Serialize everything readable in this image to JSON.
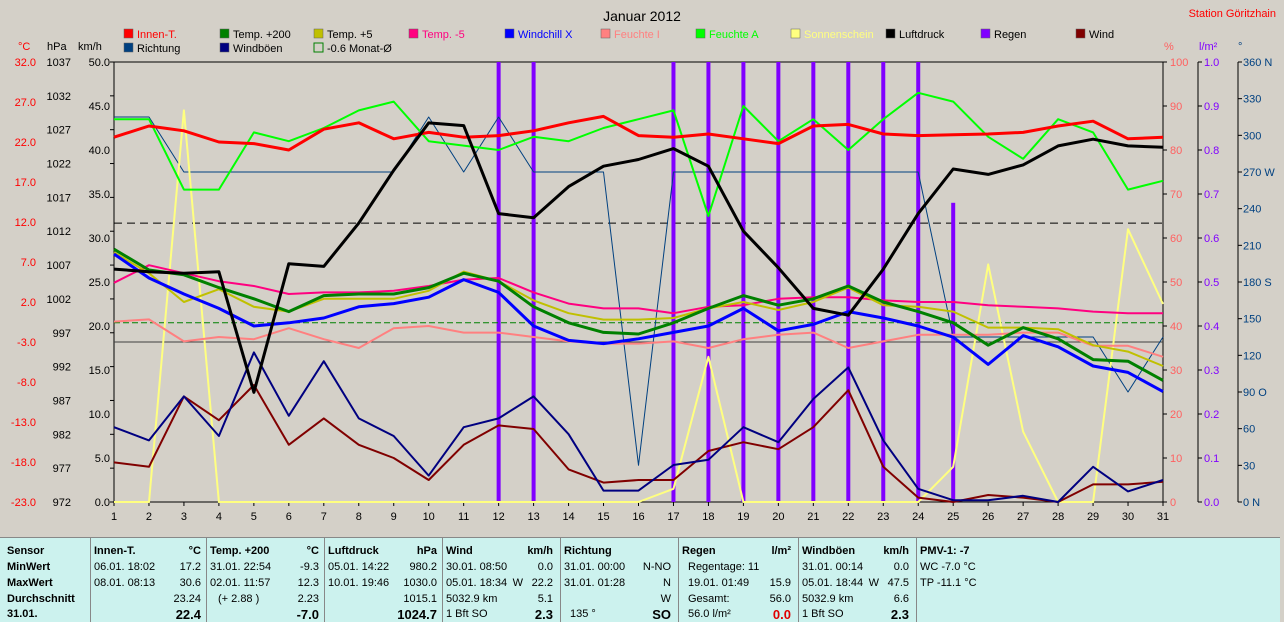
{
  "title": "Januar 2012",
  "station": "Station Göritzhain",
  "axes": {
    "c_label": "°C",
    "hpa_label": "hPa",
    "kmh_label": "km/h",
    "pct_label": "%",
    "rain_label": "l/m²",
    "deg_label": "°",
    "c_ticks": [
      "32.0",
      "27.0",
      "22.0",
      "17.0",
      "12.0",
      "7.0",
      "2.0",
      "-3.0",
      "-8.0",
      "-13.0",
      "-18.0",
      "-23.0"
    ],
    "hpa_ticks": [
      "1037",
      "1032",
      "1027",
      "1022",
      "1017",
      "1012",
      "1007",
      "1002",
      "997",
      "992",
      "987",
      "982",
      "977",
      "972"
    ],
    "kmh_ticks": [
      "50.0",
      "45.0",
      "40.0",
      "35.0",
      "30.0",
      "25.0",
      "20.0",
      "15.0",
      "10.0",
      "5.0",
      "0.0"
    ],
    "pct_ticks": [
      "100",
      "90",
      "80",
      "70",
      "60",
      "50",
      "40",
      "30",
      "20",
      "10",
      "0"
    ],
    "rain_ticks": [
      "1.0",
      "0.9",
      "0.8",
      "0.7",
      "0.6",
      "0.5",
      "0.4",
      "0.3",
      "0.2",
      "0.1",
      "0.0"
    ],
    "deg_ticks": [
      "360 N",
      "330",
      "300",
      "270 W",
      "240",
      "210",
      "180 S",
      "150",
      "120",
      "90 O",
      "60",
      "30",
      "0 N"
    ],
    "x_ticks": [
      "1",
      "2",
      "3",
      "4",
      "5",
      "6",
      "7",
      "8",
      "9",
      "10",
      "11",
      "12",
      "13",
      "14",
      "15",
      "16",
      "17",
      "18",
      "19",
      "20",
      "21",
      "22",
      "23",
      "24",
      "25",
      "26",
      "27",
      "28",
      "29",
      "30",
      "31"
    ]
  },
  "legend": [
    {
      "label": "Innen-T.",
      "color": "#ff0000"
    },
    {
      "label": "Temp. +200",
      "color": "#008000"
    },
    {
      "label": "Temp. +5",
      "color": "#c0c000"
    },
    {
      "label": "Temp. -5",
      "color": "#ff0080"
    },
    {
      "label": "Windchill X",
      "color": "#0000ff"
    },
    {
      "label": "Feuchte I",
      "color": "#ff8080"
    },
    {
      "label": "Feuchte A",
      "color": "#00ff00"
    },
    {
      "label": "Sonnenschein",
      "color": "#ffff80"
    },
    {
      "label": "Luftdruck",
      "color": "#000000"
    },
    {
      "label": "Regen",
      "color": "#8000ff"
    },
    {
      "label": "Wind",
      "color": "#800000"
    },
    {
      "label": "Richtung",
      "color": "#004080"
    },
    {
      "label": "Windböen",
      "color": "#000080"
    },
    {
      "label": "-0.6 Monat-Ø",
      "color": "#008000"
    }
  ],
  "chart_data": {
    "type": "line",
    "title": "Januar 2012",
    "x": [
      1,
      2,
      3,
      4,
      5,
      6,
      7,
      8,
      9,
      10,
      11,
      12,
      13,
      14,
      15,
      16,
      17,
      18,
      19,
      20,
      21,
      22,
      23,
      24,
      25,
      26,
      27,
      28,
      29,
      30,
      31
    ],
    "y_primary_axis": "°C",
    "ylim_c": [
      -23,
      32
    ],
    "ylim_hpa": [
      972,
      1037
    ],
    "ylim_kmh": [
      0,
      50
    ],
    "ylim_pct": [
      0,
      100
    ],
    "ylim_rain": [
      0,
      1
    ],
    "ylim_deg": [
      0,
      360
    ],
    "grid": false,
    "legend_position": "top",
    "series": [
      {
        "name": "Innen-T.",
        "unit": "°C",
        "color": "#ff0000",
        "values": [
          22.6,
          24.0,
          23.4,
          22.0,
          21.8,
          21.0,
          23.6,
          24.4,
          22.4,
          23.2,
          22.6,
          22.8,
          23.4,
          24.4,
          25.2,
          22.8,
          22.6,
          23.0,
          22.4,
          21.8,
          24.0,
          24.2,
          23.0,
          22.8,
          22.9,
          23.0,
          23.2,
          24.0,
          24.6,
          22.4,
          22.6
        ]
      },
      {
        "name": "Temp. +200",
        "unit": "°C",
        "color": "#008000",
        "values": [
          8.6,
          6.0,
          5.4,
          3.8,
          2.4,
          0.8,
          2.8,
          3.0,
          3.0,
          3.8,
          5.6,
          4.6,
          1.4,
          -0.6,
          -1.8,
          -2.0,
          -0.6,
          1.2,
          2.8,
          1.6,
          2.4,
          4.0,
          2.0,
          0.8,
          -0.6,
          -3.4,
          -1.2,
          -2.6,
          -5.2,
          -5.4,
          -7.8
        ]
      },
      {
        "name": "Temp. +5",
        "unit": "°C",
        "color": "#c0c000",
        "values": [
          8.2,
          5.6,
          2.0,
          3.6,
          1.4,
          0.8,
          2.4,
          2.4,
          2.4,
          3.4,
          5.8,
          4.6,
          2.2,
          0.6,
          -0.2,
          -0.2,
          0.0,
          1.2,
          2.0,
          1.0,
          2.0,
          3.8,
          1.6,
          1.4,
          0.8,
          -1.2,
          -1.2,
          -1.4,
          -3.4,
          -4.2,
          -6.0
        ]
      },
      {
        "name": "Temp. -5",
        "unit": "°C",
        "color": "#ff0080",
        "values": [
          4.4,
          6.6,
          5.6,
          4.6,
          4.0,
          3.0,
          3.2,
          3.2,
          3.4,
          4.0,
          4.8,
          5.0,
          3.2,
          1.8,
          1.2,
          1.2,
          0.6,
          1.4,
          1.6,
          2.4,
          2.6,
          2.6,
          2.2,
          2.0,
          2.0,
          1.6,
          1.4,
          1.2,
          0.8,
          0.6,
          0.6
        ]
      },
      {
        "name": "Windchill X",
        "unit": "°C",
        "color": "#0000ff",
        "values": [
          8.0,
          5.0,
          3.0,
          1.2,
          -1.0,
          -0.6,
          0.0,
          1.4,
          1.8,
          2.6,
          4.8,
          3.2,
          -1.0,
          -2.8,
          -3.2,
          -2.6,
          -1.8,
          -1.0,
          1.2,
          -1.6,
          -0.8,
          0.8,
          0.0,
          -1.0,
          -2.4,
          -5.8,
          -2.2,
          -3.6,
          -6.0,
          -6.8,
          -9.2
        ]
      },
      {
        "name": "Feuchte I",
        "unit": "%",
        "color": "#ff8080",
        "values": [
          41,
          41.5,
          36.5,
          37.5,
          37,
          39.5,
          37,
          35,
          39.5,
          40,
          38.5,
          38.5,
          37.5,
          36.5,
          36,
          36,
          36.5,
          35,
          37,
          38,
          38.5,
          35,
          36.5,
          38,
          38,
          38,
          38.5,
          38.5,
          35.5,
          35.5,
          33
        ]
      },
      {
        "name": "Feuchte A",
        "unit": "%",
        "color": "#00ff00",
        "values": [
          87,
          87,
          71,
          71,
          84,
          82,
          85,
          89,
          91,
          82,
          81,
          80,
          83,
          82,
          85,
          87,
          89,
          65,
          90,
          82,
          87,
          80,
          87,
          93,
          91,
          83,
          78,
          87,
          84,
          71,
          73
        ]
      },
      {
        "name": "Sonnenschein",
        "unit": "%",
        "color": "#ffff80",
        "values": [
          0,
          0,
          89,
          0,
          0,
          0,
          0,
          0,
          0,
          0,
          0,
          0,
          0,
          0,
          0,
          0,
          3,
          33,
          0,
          0,
          0,
          0,
          0,
          0,
          8,
          54,
          16,
          0,
          0,
          62,
          45
        ]
      },
      {
        "name": "Luftdruck",
        "unit": "hPa",
        "color": "#000000",
        "values": [
          1006.4,
          1006.0,
          1005.8,
          1006.0,
          988.2,
          1007.2,
          1006.8,
          1013.2,
          1021.0,
          1028.0,
          1027.6,
          1014.6,
          1014.0,
          1018.6,
          1021.6,
          1022.6,
          1024.2,
          1021.6,
          1012.0,
          1006.6,
          1000.6,
          999.6,
          1006.4,
          1014.6,
          1021.2,
          1020.4,
          1021.8,
          1024.6,
          1025.6,
          1024.6,
          1024.4
        ]
      },
      {
        "name": "Wind",
        "unit": "km/h",
        "color": "#800000",
        "values": [
          4.5,
          4.0,
          12.0,
          9.3,
          13.3,
          6.5,
          9.5,
          6.5,
          5.0,
          2.5,
          6.5,
          8.7,
          8.3,
          3.7,
          2.2,
          2.5,
          2.5,
          5.8,
          6.8,
          6.0,
          8.5,
          12.7,
          4.0,
          0.5,
          0.0,
          0.8,
          0.5,
          0.0,
          2.0,
          2.0,
          2.3
        ]
      },
      {
        "name": "Windböen",
        "unit": "km/h",
        "color": "#000080",
        "values": [
          8.5,
          7.0,
          12.0,
          7.5,
          17.0,
          9.8,
          16.0,
          9.5,
          7.5,
          3.0,
          8.5,
          9.5,
          12.0,
          7.7,
          1.3,
          1.3,
          4.2,
          4.8,
          8.5,
          6.8,
          11.7,
          15.3,
          7.0,
          1.5,
          0.2,
          0.2,
          0.7,
          0.0,
          4.0,
          1.2,
          2.5
        ]
      },
      {
        "name": "Richtung",
        "unit": "°",
        "color": "#004080",
        "values": [
          315,
          315,
          270,
          270,
          270,
          270,
          270,
          270,
          270,
          315,
          270,
          315,
          270,
          270,
          270,
          30,
          270,
          270,
          270,
          270,
          270,
          270,
          270,
          270,
          135,
          135,
          135,
          135,
          135,
          90,
          135
        ]
      },
      {
        "name": "Regen",
        "unit": "l/m²",
        "color": "#8000ff",
        "type": "bar",
        "values": [
          0,
          0,
          0,
          0,
          0,
          0,
          0,
          0,
          0,
          0,
          0,
          1.0,
          1.0,
          0,
          0,
          0,
          1.0,
          1.0,
          1.0,
          1.0,
          1.0,
          1.0,
          1.0,
          1.0,
          0.68,
          0,
          0,
          0,
          0,
          0,
          0
        ]
      },
      {
        "name": "-0.6 Monat-Ø",
        "unit": "°C",
        "color": "#008000",
        "constant": -0.6
      }
    ],
    "reference_lines": [
      {
        "unit": "hPa",
        "value": 1013.2,
        "style": "dashed",
        "color": "#000000"
      }
    ]
  },
  "stats": {
    "sensor": {
      "title": "Sensor",
      "rows": [
        "MinWert",
        "MaxWert",
        "Durchschnitt",
        "31.01."
      ]
    },
    "innen": {
      "title": "Innen-T.",
      "unit": "°C",
      "min_time": "06.01.  18:02",
      "min": "17.2",
      "max_time": "08.01.  08:13",
      "max": "30.6",
      "avg": "23.24",
      "cur": "22.4"
    },
    "temp200": {
      "title": "Temp. +200",
      "unit": "°C",
      "min_time": "31.01.  22:54",
      "min": "-9.3",
      "max_time": "02.01.  11:57",
      "max": "12.3",
      "avg_note": "(+ 2.88 )",
      "avg": "2.23",
      "cur": "-7.0"
    },
    "luftdruck": {
      "title": "Luftdruck",
      "unit": "hPa",
      "min_time": "05.01.  14:22",
      "min": "980.2",
      "max_time": "10.01.  19:46",
      "max": "1030.0",
      "avg": "1015.1",
      "cur": "1024.7"
    },
    "wind": {
      "title": "Wind",
      "unit": "km/h",
      "min_time": "30.01.  08:50",
      "min": "0.0",
      "max_time": "05.01.  18:34",
      "max_dir": "W",
      "max": "22.2",
      "dist": "5032.9 km",
      "avg": "5.1",
      "cur_bft": "1 Bft SO",
      "cur": "2.3"
    },
    "richtung": {
      "title": "Richtung",
      "min_time": "31.01.  00:00",
      "min": "N-NO",
      "max_time": "31.01.  01:28",
      "max": "N",
      "avg": "W",
      "cur_deg": "135 °",
      "cur": "SO"
    },
    "regen": {
      "title": "Regen",
      "unit": "l/m²",
      "days": "Regentage: 11",
      "max_time": "19.01.  01:49",
      "max": "15.9",
      "total_label": "Gesamt:",
      "total": "56.0",
      "cur_total": "56.0 l/m²",
      "cur": "0.0"
    },
    "boeen": {
      "title": "Windböen",
      "unit": "km/h",
      "min_time": "31.01.  00:14",
      "min": "0.0",
      "max_time": "05.01.  18:44",
      "max_dir": "W",
      "max": "47.5",
      "dist": "5032.9 km",
      "avg": "6.6",
      "cur_bft": "1 Bft SO",
      "cur": "2.3"
    },
    "pmv": {
      "title": "PMV-1: -7",
      "wc": "WC -7.0 °C",
      "tp": "TP -11.1 °C"
    }
  }
}
